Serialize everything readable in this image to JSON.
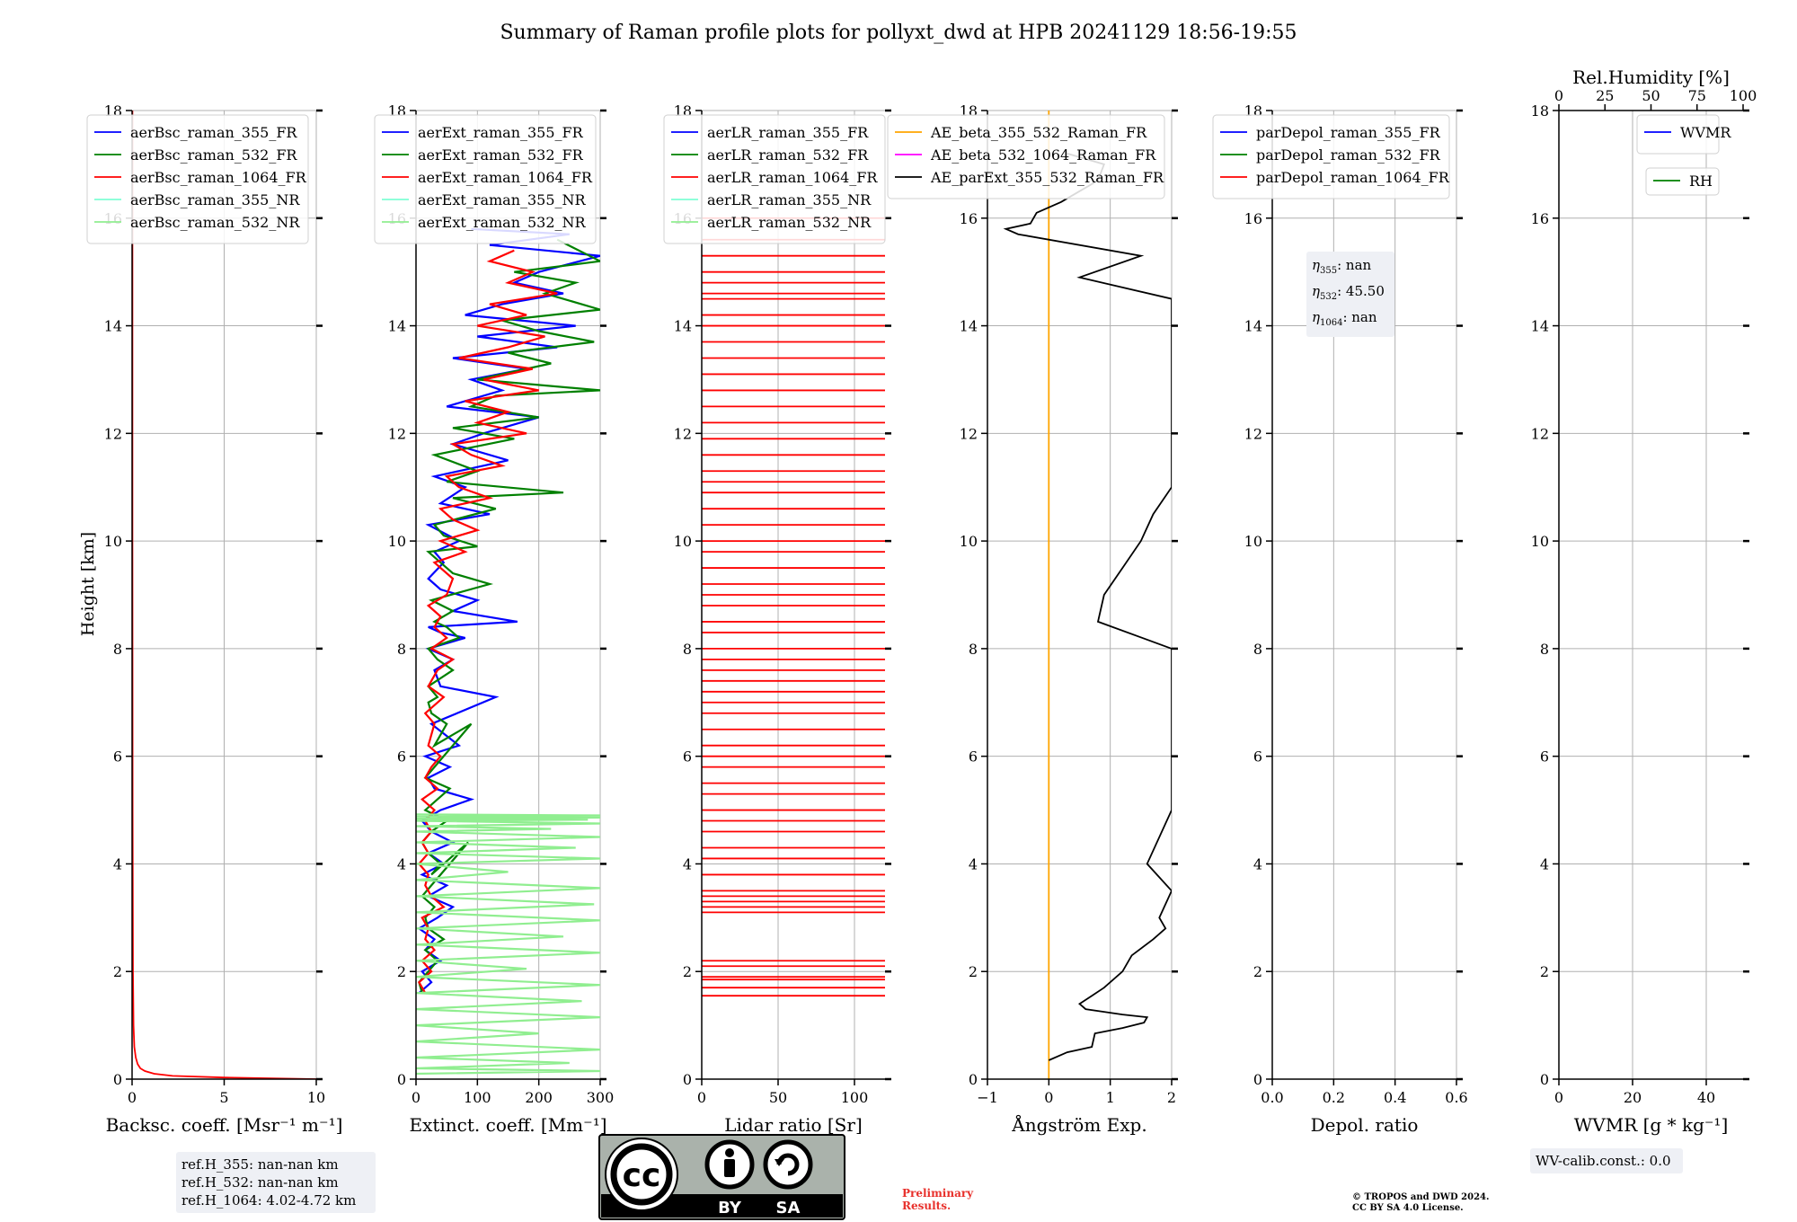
{
  "chart_data": {
    "title": "Summary of Raman profile plots for pollyxt_dwd at HPB 20241129 18:56-19:55",
    "type": "line",
    "shared_ylabel": "Height [km]",
    "ylim": [
      0,
      18
    ],
    "yticks": [
      0,
      2,
      4,
      6,
      8,
      10,
      12,
      14,
      16,
      18
    ],
    "panels": [
      {
        "id": "backscatter",
        "xlabel": "Backsc. coeff. [Msr⁻¹ m⁻¹]",
        "xlim": [
          0,
          10
        ],
        "xticks": [
          0,
          5,
          10
        ],
        "legend": [
          "aerBsc_raman_355_FR",
          "aerBsc_raman_532_FR",
          "aerBsc_raman_1064_FR",
          "aerBsc_raman_355_NR",
          "aerBsc_raman_532_NR"
        ],
        "series": [
          {
            "name": "aerBsc_raman_1064_FR",
            "color": "#ff0000",
            "x": [
              10,
              5,
              2.2,
              1.2,
              0.7,
              0.45,
              0.3,
              0.2,
              0.12,
              0.08,
              0.05,
              0.03,
              0.02,
              0.02
            ],
            "y": [
              0.0,
              0.03,
              0.06,
              0.1,
              0.15,
              0.2,
              0.28,
              0.4,
              0.6,
              1.0,
              2.0,
              5.0,
              10.0,
              18.0
            ]
          }
        ]
      },
      {
        "id": "extinction",
        "xlabel": "Extinct. coeff. [Mm⁻¹]",
        "xlim": [
          0,
          300
        ],
        "xticks": [
          0,
          100,
          200,
          300
        ],
        "legend": [
          "aerExt_raman_355_FR",
          "aerExt_raman_532_FR",
          "aerExt_raman_1064_FR",
          "aerExt_raman_355_NR",
          "aerExt_raman_532_NR"
        ],
        "series": [
          {
            "name": "aerExt_raman_355_FR",
            "color": "#0000ff",
            "x": [
              5,
              25,
              10,
              40,
              15,
              30,
              5,
              35,
              60,
              20,
              50,
              10,
              45,
              20,
              60,
              25,
              10,
              40,
              90,
              30,
              20,
              55,
              15,
              70,
              25,
              130,
              40,
              30,
              60,
              20,
              80,
              40,
              20,
              165,
              60,
              100,
              40,
              20,
              45,
              30,
              70,
              20,
              120,
              40,
              80,
              30,
              150,
              60,
              110,
              200,
              50,
              140,
              90,
              180,
              60,
              230,
              100,
              260,
              80,
              140,
              240,
              160,
              200,
              300,
              120,
              250,
              90
            ],
            "y": [
              1.6,
              1.8,
              2.0,
              2.2,
              2.4,
              2.6,
              2.8,
              3.0,
              3.2,
              3.4,
              3.6,
              3.8,
              4.0,
              4.2,
              4.4,
              4.6,
              4.8,
              5.0,
              5.2,
              5.4,
              5.6,
              5.8,
              6.0,
              6.2,
              6.6,
              7.1,
              7.3,
              7.6,
              7.8,
              8.0,
              8.2,
              8.3,
              8.4,
              8.5,
              8.7,
              8.9,
              9.1,
              9.3,
              9.6,
              9.8,
              10.0,
              10.3,
              10.5,
              10.7,
              11.0,
              11.2,
              11.5,
              11.8,
              12.0,
              12.3,
              12.5,
              12.8,
              13.0,
              13.2,
              13.4,
              13.6,
              13.8,
              14.0,
              14.2,
              14.4,
              14.6,
              14.8,
              15.0,
              15.3,
              15.5,
              15.7,
              15.8
            ]
          },
          {
            "name": "aerExt_raman_532_FR",
            "color": "#008000",
            "x": [
              10,
              5,
              20,
              35,
              15,
              45,
              20,
              15,
              30,
              10,
              85,
              25,
              40,
              20,
              10,
              25,
              50,
              15,
              35,
              55,
              15,
              90,
              30,
              50,
              25,
              20,
              35,
              20,
              60,
              35,
              20,
              70,
              50,
              30,
              60,
              25,
              120,
              60,
              40,
              20,
              100,
              45,
              30,
              130,
              60,
              240,
              50,
              100,
              30,
              160,
              60,
              200,
              90,
              130,
              300,
              100,
              220,
              150,
              290,
              200,
              140,
              300,
              210,
              260,
              160,
              300,
              230
            ],
            "y": [
              1.6,
              1.8,
              2.0,
              2.2,
              2.4,
              2.6,
              2.8,
              3.0,
              3.2,
              3.4,
              4.4,
              3.8,
              4.0,
              4.2,
              4.4,
              4.6,
              4.8,
              5.0,
              5.2,
              5.4,
              5.6,
              6.6,
              6.2,
              6.6,
              6.8,
              7.0,
              7.1,
              7.3,
              7.6,
              7.8,
              8.0,
              8.2,
              8.4,
              8.5,
              8.7,
              8.9,
              9.2,
              9.4,
              9.6,
              9.8,
              9.9,
              10.1,
              10.3,
              10.6,
              10.8,
              10.9,
              11.1,
              11.3,
              11.6,
              11.9,
              12.1,
              12.3,
              12.5,
              12.7,
              12.8,
              13.0,
              13.3,
              13.5,
              13.7,
              13.9,
              14.1,
              14.3,
              14.6,
              14.8,
              15.0,
              15.2,
              15.6
            ]
          },
          {
            "name": "aerExt_raman_1064_FR",
            "color": "#ff0000",
            "x": [
              15,
              5,
              25,
              10,
              30,
              15,
              20,
              10,
              45,
              25,
              15,
              20,
              5,
              20,
              10,
              25,
              15,
              30,
              10,
              35,
              15,
              25,
              40,
              20,
              30,
              15,
              45,
              20,
              35,
              60,
              25,
              50,
              30,
              40,
              20,
              50,
              60,
              30,
              80,
              40,
              100,
              60,
              40,
              120,
              70,
              50,
              140,
              90,
              60,
              180,
              100,
              150,
              80,
              200,
              110,
              190,
              70,
              150,
              210,
              100,
              180,
              120,
              230,
              150,
              190,
              120,
              160
            ],
            "y": [
              1.6,
              1.8,
              2.0,
              2.2,
              2.4,
              2.6,
              2.8,
              3.0,
              3.2,
              3.4,
              3.6,
              3.8,
              4.0,
              4.2,
              4.4,
              4.6,
              4.8,
              5.0,
              5.2,
              5.4,
              5.6,
              5.8,
              6.0,
              6.2,
              6.6,
              6.8,
              7.1,
              7.3,
              7.6,
              7.8,
              8.0,
              8.2,
              8.4,
              8.6,
              8.8,
              9.0,
              9.3,
              9.6,
              9.8,
              10.0,
              10.2,
              10.4,
              10.6,
              10.8,
              11.0,
              11.2,
              11.4,
              11.6,
              11.8,
              12.0,
              12.2,
              12.4,
              12.6,
              12.8,
              13.0,
              13.2,
              13.4,
              13.6,
              13.8,
              14.0,
              14.2,
              14.4,
              14.6,
              14.8,
              15.0,
              15.2,
              15.4
            ]
          },
          {
            "name": "aerExt_raman_532_NR",
            "color": "#90ee90",
            "x": [
              0,
              300,
              0,
              250,
              0,
              300,
              0,
              200,
              0,
              300,
              0,
              270,
              0,
              300,
              0,
              180,
              0,
              300,
              0,
              240,
              0,
              300,
              0,
              290,
              0,
              300,
              0,
              150,
              0,
              300,
              0,
              260,
              0,
              300,
              0,
              220,
              0,
              300,
              0,
              280,
              0,
              300,
              0,
              300,
              0
            ],
            "y": [
              0.1,
              0.15,
              0.2,
              0.3,
              0.4,
              0.55,
              0.7,
              0.85,
              1.0,
              1.15,
              1.3,
              1.45,
              1.6,
              1.75,
              1.9,
              2.05,
              2.2,
              2.35,
              2.5,
              2.65,
              2.8,
              2.95,
              3.1,
              3.25,
              3.4,
              3.55,
              3.7,
              3.85,
              4.0,
              4.1,
              4.2,
              4.3,
              4.4,
              4.5,
              4.6,
              4.65,
              4.7,
              4.75,
              4.8,
              4.82,
              4.84,
              4.86,
              4.88,
              4.9,
              4.92
            ]
          }
        ]
      },
      {
        "id": "lidar_ratio",
        "xlabel": "Lidar ratio [Sr]",
        "xlim": [
          0,
          120
        ],
        "xticks": [
          0,
          50,
          100
        ],
        "legend": [
          "aerLR_raman_355_FR",
          "aerLR_raman_532_FR",
          "aerLR_raman_1064_FR",
          "aerLR_raman_355_NR",
          "aerLR_raman_532_NR"
        ],
        "series": [
          {
            "name": "aerLR_raman_532_FR",
            "color": "#ff0000",
            "x": [
              0,
              120,
              0,
              120,
              0,
              120,
              0,
              120,
              0,
              120,
              0,
              120,
              0,
              120,
              0,
              120,
              0,
              120,
              0,
              120,
              0,
              120,
              0,
              120,
              0,
              120,
              0,
              120,
              0,
              120,
              0,
              120,
              0,
              120,
              0,
              120,
              0,
              120,
              0,
              120,
              0,
              120,
              0,
              120,
              0,
              120,
              0,
              120,
              0,
              120,
              0,
              120,
              0,
              120,
              0,
              120,
              0,
              120,
              0,
              120
            ],
            "y": [
              1.55,
              1.7,
              1.85,
              1.9,
              2.1,
              2.2,
              3.1,
              3.2,
              3.3,
              3.4,
              3.5,
              3.8,
              4.1,
              4.3,
              4.6,
              4.8,
              5.0,
              5.3,
              5.5,
              5.8,
              6.0,
              6.2,
              6.5,
              6.8,
              7.0,
              7.2,
              7.4,
              7.6,
              7.8,
              8.0,
              8.3,
              8.5,
              8.8,
              9.0,
              9.2,
              9.5,
              9.8,
              10.0,
              10.3,
              10.6,
              10.9,
              11.1,
              11.3,
              11.6,
              11.9,
              12.2,
              12.5,
              12.8,
              13.1,
              13.4,
              13.7,
              14.0,
              14.2,
              14.5,
              14.6,
              14.8,
              15.0,
              15.3,
              15.6,
              16.0
            ]
          }
        ]
      },
      {
        "id": "angstrom",
        "xlabel": "Ångström Exp.",
        "xlim": [
          -1,
          2
        ],
        "xticks": [
          -1,
          0,
          1,
          2
        ],
        "legend": [
          "AE_beta_355_532_Raman_FR",
          "AE_beta_532_1064_Raman_FR",
          "AE_parExt_355_532_Raman_FR"
        ],
        "series": [
          {
            "name": "AE_beta_355_532_Raman_FR",
            "color": "#ffa500",
            "x": [
              0,
              0
            ],
            "y": [
              0,
              18
            ]
          },
          {
            "name": "AE_parExt_355_532_Raman_FR",
            "color": "#000000",
            "x": [
              0,
              0.3,
              0.7,
              0.75,
              1.2,
              1.55,
              1.6,
              1.2,
              0.9,
              0.6,
              0.5,
              0.7,
              0.9,
              1.2,
              1.35,
              1.7,
              1.9,
              1.8,
              2.0,
              1.6,
              2.0,
              2.0,
              2.0,
              2.0,
              0.8,
              0.9,
              1.2,
              1.5,
              1.7,
              2.0,
              2.0,
              2.0,
              2.0,
              2.0,
              2.0,
              0.5,
              1.5,
              -0.5,
              -0.7,
              -0.3,
              -0.2,
              0.2,
              0.5,
              0.8,
              0.9,
              0.3
            ],
            "y": [
              0.35,
              0.5,
              0.6,
              0.85,
              0.95,
              1.05,
              1.15,
              1.2,
              1.25,
              1.3,
              1.4,
              1.55,
              1.7,
              2.0,
              2.3,
              2.6,
              2.8,
              3.0,
              3.5,
              4.0,
              5.0,
              6.0,
              7.0,
              8.0,
              8.5,
              9.0,
              9.5,
              10.0,
              10.5,
              11.0,
              11.5,
              12.0,
              13.0,
              14.0,
              14.5,
              14.9,
              15.3,
              15.7,
              15.8,
              15.9,
              16.1,
              16.3,
              16.5,
              16.7,
              17.0,
              17.2
            ]
          }
        ]
      },
      {
        "id": "depol",
        "xlabel": "Depol. ratio",
        "xlim": [
          0,
          0.6
        ],
        "xticks": [
          0.0,
          0.2,
          0.4,
          0.6
        ],
        "xtick_labels": [
          "0.0",
          "0.2",
          "0.4",
          "0.6"
        ],
        "legend": [
          "parDepol_raman_355_FR",
          "parDepol_raman_532_FR",
          "parDepol_raman_1064_FR"
        ],
        "series": [],
        "annotation": {
          "eta_355": "nan",
          "eta_532": "45.50",
          "eta_1064": "nan"
        }
      },
      {
        "id": "wvmr",
        "xlabel": "WVMR [g * kg⁻¹]",
        "xlim": [
          0,
          50
        ],
        "xticks": [
          0,
          20,
          40
        ],
        "top_xlabel": "Rel.Humidity [%]",
        "top_xlim": [
          0,
          100
        ],
        "top_xticks": [
          0,
          25,
          50,
          75,
          100
        ],
        "legend": [
          "WVMR"
        ],
        "legend2": [
          "RH"
        ],
        "series": []
      }
    ]
  },
  "legend_colors": {
    "355_FR": "#0000ff",
    "532_FR": "#008000",
    "1064_FR": "#ff0000",
    "355_NR": "#7fffd4",
    "532_NR": "#90ee90",
    "AE_beta_355_532": "#ffa500",
    "AE_beta_532_1064": "#ff00ff",
    "AE_parExt": "#000000",
    "WVMR": "#0000ff",
    "RH": "#008000"
  },
  "annotations": {
    "ref_heights": [
      "ref.H_355: nan-nan km",
      "ref.H_532: nan-nan km",
      "ref.H_1064: 4.02-4.72 km"
    ],
    "depol_eta": [
      {
        "sub": "355",
        "value": ": nan"
      },
      {
        "sub": "532",
        "value": ": 45.50"
      },
      {
        "sub": "1064",
        "value": ": nan"
      }
    ],
    "wv_calib": "WV-calib.const.: 0.0",
    "preliminary": [
      "Preliminary",
      "Results."
    ],
    "copyright": [
      "© TROPOS and DWD 2024.",
      "CC BY SA 4.0 License."
    ],
    "license_badge": {
      "cc": "cc",
      "by": "BY",
      "sa": "SA"
    }
  }
}
